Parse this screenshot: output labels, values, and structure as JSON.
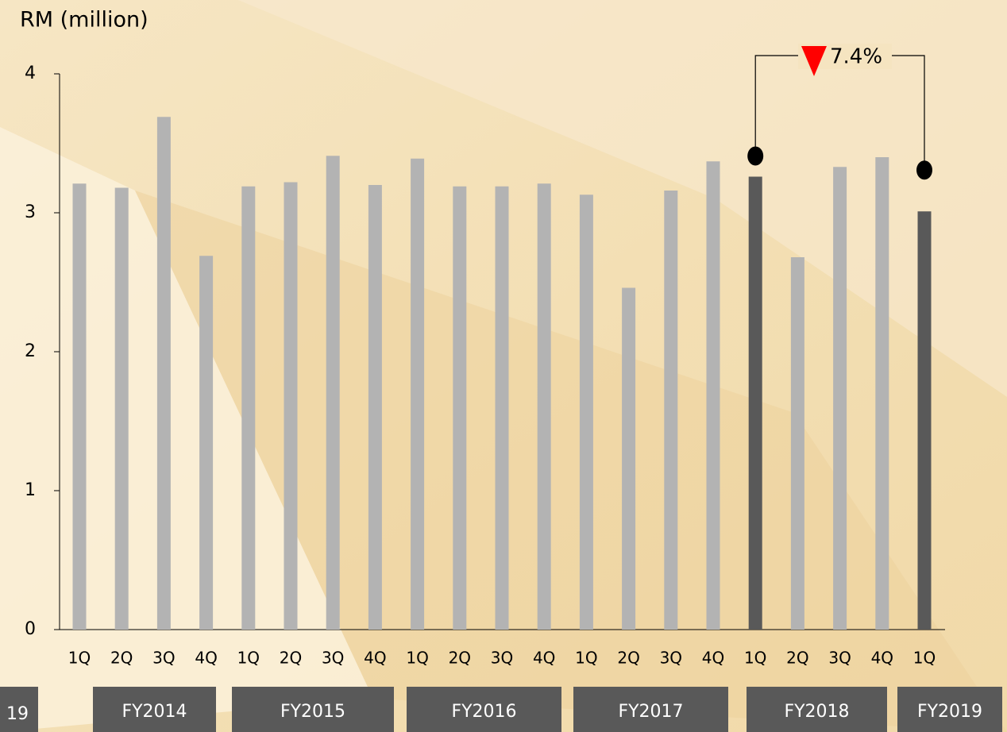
{
  "chart_data": {
    "type": "bar",
    "y_label": "RM (million)",
    "categories": [
      "1Q",
      "2Q",
      "3Q",
      "4Q",
      "1Q",
      "2Q",
      "3Q",
      "4Q",
      "1Q",
      "2Q",
      "3Q",
      "4Q",
      "1Q",
      "2Q",
      "3Q",
      "4Q",
      "1Q",
      "2Q",
      "3Q",
      "4Q",
      "1Q"
    ],
    "values": [
      3.21,
      3.18,
      3.69,
      2.69,
      3.19,
      3.22,
      3.41,
      3.2,
      3.39,
      3.19,
      3.19,
      3.21,
      3.13,
      2.46,
      3.16,
      3.37,
      3.26,
      2.68,
      3.33,
      3.4,
      3.01
    ],
    "colors": [
      "#b3b3b3",
      "#b3b3b3",
      "#b3b3b3",
      "#b3b3b3",
      "#b3b3b3",
      "#b3b3b3",
      "#b3b3b3",
      "#b3b3b3",
      "#b3b3b3",
      "#b3b3b3",
      "#b3b3b3",
      "#b3b3b3",
      "#b3b3b3",
      "#b3b3b3",
      "#b3b3b3",
      "#b3b3b3",
      "#595959",
      "#b3b3b3",
      "#b3b3b3",
      "#b3b3b3",
      "#595959"
    ],
    "groups": [
      "19",
      "FY2014",
      "FY2015",
      "FY2016",
      "FY2017",
      "FY2018",
      "FY2019"
    ],
    "ylim": [
      0,
      4
    ],
    "yticks": [
      0,
      1,
      2,
      3,
      4
    ],
    "annotation": "7.4%"
  }
}
